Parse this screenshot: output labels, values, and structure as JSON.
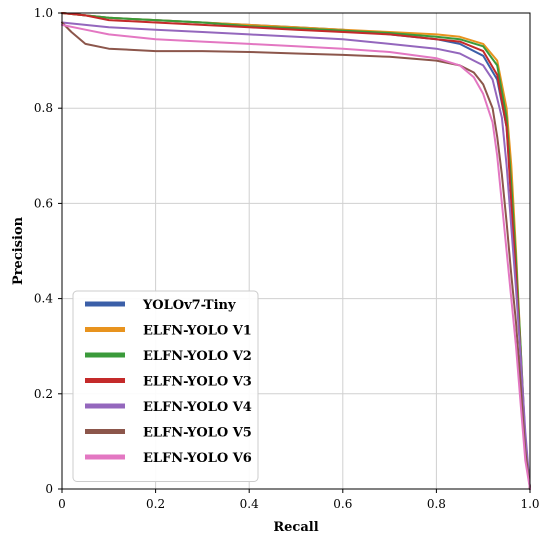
{
  "chart_data": {
    "type": "line",
    "title": "",
    "xlabel": "Recall",
    "ylabel": "Precision",
    "xlim": [
      0,
      1
    ],
    "ylim": [
      0,
      1
    ],
    "grid": true,
    "legend_position": "lower-left",
    "xticks": [
      "0",
      "0.2",
      "0.4",
      "0.6",
      "0.8",
      "1.0"
    ],
    "yticks": [
      "0",
      "0.2",
      "0.4",
      "0.6",
      "0.8",
      "1.0"
    ],
    "series": [
      {
        "name": "YOLOv7-Tiny",
        "color": "#3b5fa8",
        "x": [
          0,
          0.05,
          0.1,
          0.2,
          0.3,
          0.4,
          0.5,
          0.6,
          0.7,
          0.8,
          0.85,
          0.9,
          0.93,
          0.95,
          0.96,
          0.97,
          0.98,
          0.99,
          1.0
        ],
        "y": [
          1.0,
          0.995,
          0.99,
          0.985,
          0.98,
          0.975,
          0.97,
          0.965,
          0.955,
          0.945,
          0.935,
          0.91,
          0.86,
          0.76,
          0.62,
          0.45,
          0.28,
          0.1,
          0.0
        ]
      },
      {
        "name": "ELFN-YOLO V1",
        "color": "#e8931e",
        "x": [
          0,
          0.05,
          0.1,
          0.2,
          0.3,
          0.4,
          0.5,
          0.6,
          0.7,
          0.8,
          0.85,
          0.9,
          0.93,
          0.95,
          0.96,
          0.97,
          0.98,
          0.99,
          1.0
        ],
        "y": [
          1.0,
          0.995,
          0.99,
          0.985,
          0.98,
          0.975,
          0.97,
          0.965,
          0.96,
          0.955,
          0.95,
          0.935,
          0.9,
          0.8,
          0.68,
          0.5,
          0.3,
          0.1,
          0.0
        ]
      },
      {
        "name": "ELFN-YOLO V2",
        "color": "#3a9a3a",
        "x": [
          0,
          0.05,
          0.1,
          0.2,
          0.3,
          0.4,
          0.5,
          0.6,
          0.7,
          0.8,
          0.85,
          0.9,
          0.93,
          0.95,
          0.96,
          0.97,
          0.98,
          0.99,
          1.0
        ],
        "y": [
          1.0,
          0.995,
          0.99,
          0.985,
          0.98,
          0.972,
          0.968,
          0.963,
          0.958,
          0.95,
          0.945,
          0.93,
          0.89,
          0.78,
          0.64,
          0.48,
          0.3,
          0.1,
          0.0
        ]
      },
      {
        "name": "ELFN-YOLO V3",
        "color": "#c42a2a",
        "x": [
          0,
          0.05,
          0.1,
          0.2,
          0.3,
          0.4,
          0.5,
          0.6,
          0.7,
          0.8,
          0.85,
          0.9,
          0.93,
          0.95,
          0.96,
          0.97,
          0.98,
          0.99,
          1.0
        ],
        "y": [
          1.0,
          0.995,
          0.985,
          0.98,
          0.975,
          0.97,
          0.965,
          0.96,
          0.955,
          0.945,
          0.94,
          0.92,
          0.87,
          0.76,
          0.6,
          0.45,
          0.28,
          0.1,
          0.0
        ]
      },
      {
        "name": "ELFN-YOLO V4",
        "color": "#9467bd",
        "x": [
          0,
          0.05,
          0.1,
          0.2,
          0.3,
          0.4,
          0.5,
          0.6,
          0.7,
          0.8,
          0.85,
          0.9,
          0.92,
          0.94,
          0.95,
          0.96,
          0.97,
          0.98,
          0.99,
          1.0
        ],
        "y": [
          0.98,
          0.975,
          0.97,
          0.965,
          0.96,
          0.955,
          0.95,
          0.945,
          0.935,
          0.925,
          0.915,
          0.89,
          0.86,
          0.78,
          0.68,
          0.55,
          0.42,
          0.28,
          0.12,
          0.0
        ]
      },
      {
        "name": "ELFN-YOLO V5",
        "color": "#8c564b",
        "x": [
          0,
          0.02,
          0.05,
          0.1,
          0.2,
          0.3,
          0.4,
          0.5,
          0.6,
          0.7,
          0.8,
          0.85,
          0.88,
          0.9,
          0.92,
          0.93,
          0.94,
          0.95,
          0.96,
          0.97,
          0.98,
          0.99,
          1.0
        ],
        "y": [
          0.98,
          0.96,
          0.935,
          0.925,
          0.92,
          0.92,
          0.918,
          0.915,
          0.912,
          0.908,
          0.9,
          0.89,
          0.875,
          0.85,
          0.8,
          0.74,
          0.66,
          0.56,
          0.45,
          0.35,
          0.22,
          0.08,
          0.0
        ]
      },
      {
        "name": "ELFN-YOLO V6",
        "color": "#e377c2",
        "x": [
          0,
          0.05,
          0.1,
          0.2,
          0.3,
          0.4,
          0.5,
          0.6,
          0.7,
          0.8,
          0.85,
          0.88,
          0.9,
          0.92,
          0.93,
          0.94,
          0.95,
          0.96,
          0.97,
          0.98,
          0.99,
          1.0
        ],
        "y": [
          0.975,
          0.965,
          0.955,
          0.945,
          0.94,
          0.935,
          0.93,
          0.925,
          0.918,
          0.905,
          0.89,
          0.865,
          0.83,
          0.77,
          0.7,
          0.6,
          0.5,
          0.4,
          0.3,
          0.18,
          0.06,
          0.0
        ]
      }
    ]
  }
}
